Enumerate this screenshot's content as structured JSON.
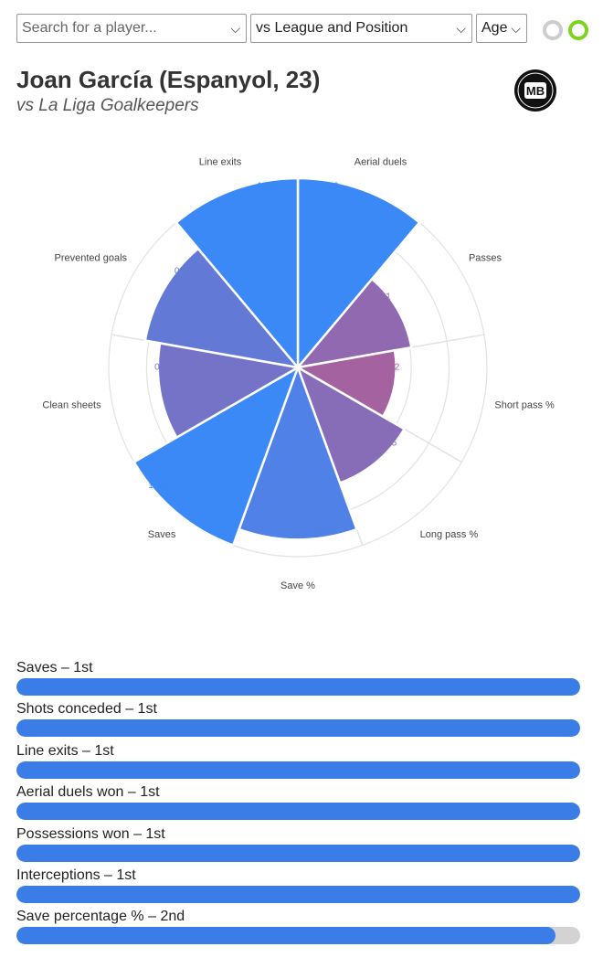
{
  "controls": {
    "search_placeholder": "Search for a player...",
    "compare": "vs League and Position",
    "age": "Age",
    "chevron": "⌵"
  },
  "header": {
    "title": "Joan García (Espanyol, 23)",
    "subtitle": "vs La Liga Goalkeepers",
    "logo_text": "MB"
  },
  "chart_data": {
    "type": "polar-bar",
    "categories": [
      "Aerial duels",
      "Passes",
      "Short pass %",
      "Long pass %",
      "Save %",
      "Saves",
      "Clean sheets",
      "Prevented goals",
      "Line exits"
    ],
    "values": [
      1.0,
      0.61,
      0.52,
      0.65,
      0.91,
      1.0,
      0.74,
      0.82,
      1.0
    ],
    "value_labels": [
      "1.00",
      "0.61",
      "0.52",
      "0.65",
      "0.91",
      "1.00",
      "0.74",
      "0.82",
      "1.00"
    ],
    "rlim": [
      0,
      1
    ],
    "colors": {
      "high": "#3b88f7",
      "low": "#a8609c",
      "grid": "#e2e2e2"
    }
  },
  "rankings": [
    {
      "label": "Saves – 1st",
      "value": 1.0
    },
    {
      "label": "Shots conceded – 1st",
      "value": 1.0
    },
    {
      "label": "Line exits – 1st",
      "value": 1.0
    },
    {
      "label": "Aerial duels won – 1st",
      "value": 1.0
    },
    {
      "label": "Possessions won – 1st",
      "value": 1.0
    },
    {
      "label": "Interceptions – 1st",
      "value": 1.0
    },
    {
      "label": "Save percentage % – 2nd",
      "value": 0.956
    }
  ]
}
